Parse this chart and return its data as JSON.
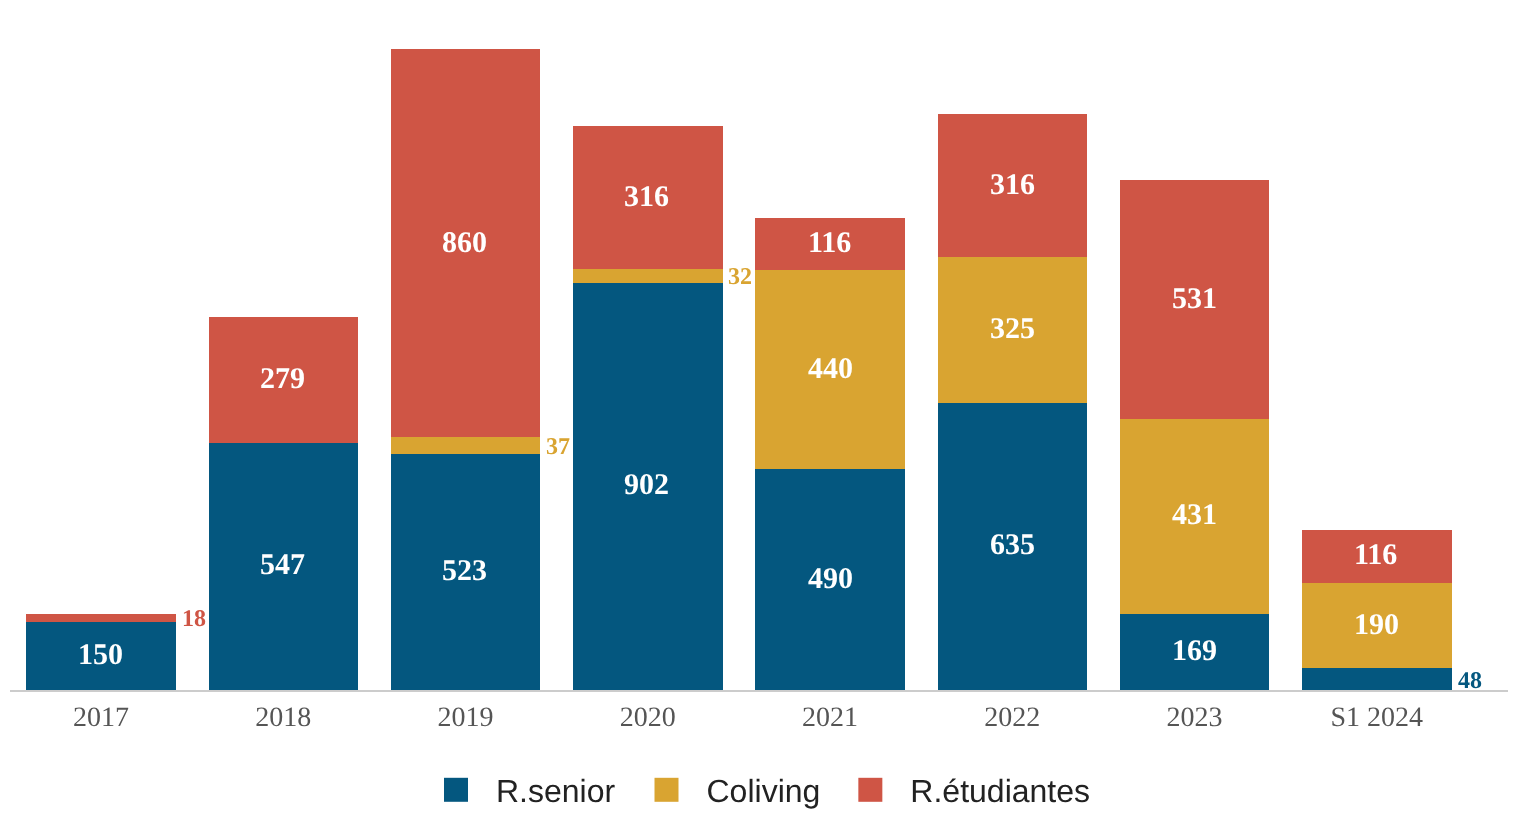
{
  "chart_data": {
    "type": "bar",
    "stacked": true,
    "data_labels": true,
    "legend": "bottom",
    "categories": [
      "2017",
      "2018",
      "2019",
      "2020",
      "2021",
      "2022",
      "2023",
      "S1 2024"
    ],
    "series": [
      {
        "name": "R.senior",
        "color": "#04577f",
        "values": [
          150,
          547,
          523,
          902,
          490,
          635,
          169,
          48
        ]
      },
      {
        "name": "Coliving",
        "color": "#d9a431",
        "values": [
          null,
          null,
          37,
          32,
          440,
          325,
          431,
          190
        ]
      },
      {
        "name": "R.étudiantes",
        "color": "#cf5545",
        "values": [
          18,
          279,
          860,
          316,
          116,
          316,
          531,
          116
        ]
      }
    ]
  }
}
